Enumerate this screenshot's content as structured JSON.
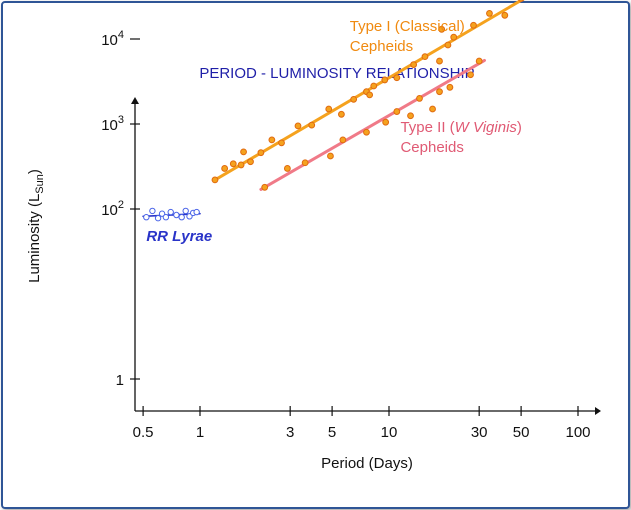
{
  "chart_data": {
    "type": "scatter",
    "title": "PERIOD - LUMINOSITY RELATIONSHIP",
    "xlabel": "Period (Days)",
    "ylabel": "Luminosity (L",
    "ylabel_sub": "Sun",
    "ylabel_close": ")",
    "x_scale": "log",
    "y_scale": "log",
    "xlim": [
      0.45,
      130
    ],
    "ylim": [
      0.5,
      50000
    ],
    "x_ticks": [
      {
        "value": 0.5,
        "label": "0.5"
      },
      {
        "value": 1,
        "label": "1"
      },
      {
        "value": 3,
        "label": "3"
      },
      {
        "value": 5,
        "label": "5"
      },
      {
        "value": 10,
        "label": "10"
      },
      {
        "value": 30,
        "label": "30"
      },
      {
        "value": 50,
        "label": "50"
      },
      {
        "value": 100,
        "label": "100"
      }
    ],
    "y_ticks": [
      {
        "value": 1,
        "base": "1",
        "exp": ""
      },
      {
        "value": 100,
        "base": "10",
        "exp": "2"
      },
      {
        "value": 1000,
        "base": "10",
        "exp": "3"
      },
      {
        "value": 10000,
        "base": "10",
        "exp": "4"
      }
    ],
    "grid": false,
    "series": [
      {
        "name": "Type I (Classical) Cepheids",
        "label_lines": [
          "Type I (Classical)",
          "Cepheids"
        ],
        "color": "#f5a21e",
        "marker_fill": "#f5a21e",
        "marker_edge": "#e06a10",
        "fit": {
          "x": [
            1.2,
            52
          ],
          "y": [
            220,
            30000
          ]
        },
        "label_anchor": {
          "x": 6.2,
          "y": 12500
        },
        "x": [
          1.2,
          1.35,
          1.5,
          1.65,
          1.7,
          1.85,
          2.1,
          2.4,
          2.7,
          3.3,
          3.9,
          4.8,
          5.6,
          6.5,
          7.6,
          7.9,
          8.3,
          9.5,
          11,
          13.5,
          15.5,
          18.5,
          19,
          20.5,
          22,
          28,
          34,
          41,
          50
        ],
        "y": [
          220,
          300,
          340,
          330,
          470,
          360,
          460,
          650,
          600,
          950,
          970,
          1500,
          1300,
          1950,
          2400,
          2200,
          2800,
          3300,
          3500,
          5000,
          6200,
          5500,
          13000,
          8500,
          10500,
          14500,
          20000,
          19000,
          30000
        ]
      },
      {
        "name": "Type II (W Viginis) Cepheids",
        "label_lines": [
          "Type II (W Viginis)",
          "Cepheids"
        ],
        "label_italic": "W Viginis",
        "color": "#f07a88",
        "marker_fill": "#f5a21e",
        "marker_edge": "#e06a10",
        "fit": {
          "x": [
            2.1,
            32
          ],
          "y": [
            170,
            5600
          ]
        },
        "label_anchor": {
          "x": 11.5,
          "y": 800
        },
        "x": [
          2.2,
          2.9,
          3.6,
          4.9,
          5.7,
          7.6,
          9.6,
          11,
          13,
          14.5,
          17,
          18.5,
          21,
          27,
          30
        ],
        "y": [
          180,
          300,
          350,
          420,
          650,
          800,
          1050,
          1400,
          1250,
          2000,
          1500,
          2400,
          2700,
          3800,
          5500
        ]
      },
      {
        "name": "RR Lyrae",
        "label_lines": [
          "RR Lyrae"
        ],
        "color": "#2a34c8",
        "marker_fill": "#ffffff",
        "marker_edge": "#4a64e8",
        "fit": {
          "x": [
            0.5,
            1.0
          ],
          "y": [
            82,
            88
          ]
        },
        "label_anchor": {
          "x": 0.52,
          "y": 42
        },
        "x": [
          0.52,
          0.56,
          0.6,
          0.63,
          0.66,
          0.7,
          0.75,
          0.8,
          0.84,
          0.88,
          0.92,
          0.96
        ],
        "y": [
          80,
          95,
          78,
          88,
          80,
          92,
          85,
          80,
          95,
          82,
          90,
          92
        ]
      }
    ]
  }
}
